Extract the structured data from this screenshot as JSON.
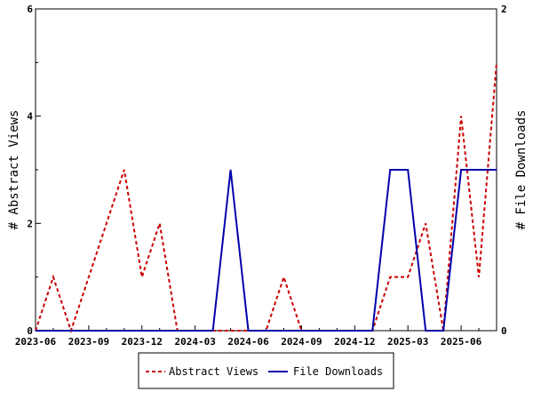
{
  "chart_data": {
    "type": "line",
    "x_tick_labels": [
      "2023-06",
      "2023-09",
      "2023-12",
      "2024-03",
      "2024-06",
      "2024-09",
      "2024-12",
      "2025-03",
      "2025-06"
    ],
    "x": [
      "2023-06",
      "2023-07",
      "2023-08",
      "2023-09",
      "2023-10",
      "2023-11",
      "2023-12",
      "2024-01",
      "2024-02",
      "2024-03",
      "2024-04",
      "2024-05",
      "2024-06",
      "2024-07",
      "2024-08",
      "2024-09",
      "2024-10",
      "2024-11",
      "2024-12",
      "2025-01",
      "2025-02",
      "2025-03",
      "2025-04",
      "2025-05",
      "2025-06",
      "2025-07",
      "2025-08"
    ],
    "series": [
      {
        "name": "Abstract Views",
        "axis": "left",
        "color": "#cc0000",
        "style": "dashed",
        "values": [
          0,
          1,
          0,
          1,
          2,
          3,
          1,
          2,
          0,
          0,
          0,
          0,
          0,
          0,
          1,
          0,
          0,
          0,
          0,
          0,
          1,
          1,
          2,
          0,
          4,
          1,
          5
        ]
      },
      {
        "name": "File Downloads",
        "axis": "right",
        "color": "#0000aa",
        "style": "solid",
        "values": [
          0,
          0,
          0,
          0,
          0,
          0,
          0,
          0,
          0,
          0,
          0,
          1,
          0,
          0,
          0,
          0,
          0,
          0,
          0,
          0,
          1,
          1,
          0,
          0,
          1,
          1,
          1
        ]
      }
    ],
    "ylabel_left": "# Abstract Views",
    "ylabel_right": "# File Downloads",
    "ylim_left": [
      0,
      6
    ],
    "ylim_right": [
      0,
      2
    ],
    "yticks_left": [
      "0",
      "2",
      "4",
      "6"
    ],
    "yticks_right": [
      "0",
      "2"
    ],
    "grid": false,
    "legend_position": "bottom-center"
  }
}
